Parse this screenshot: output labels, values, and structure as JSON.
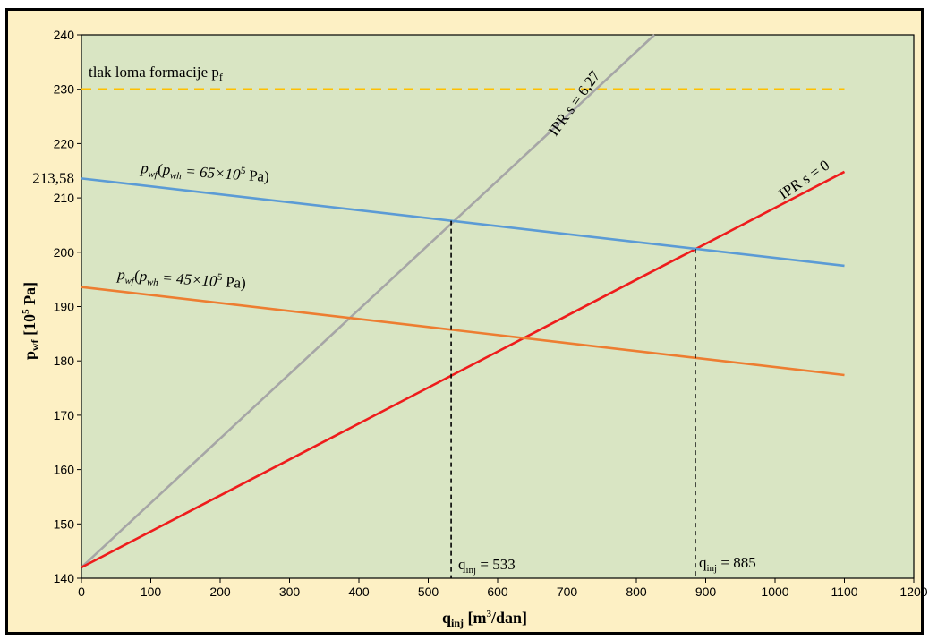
{
  "chart_data": {
    "type": "line",
    "xlabel": {
      "main": "q",
      "sub": "inj",
      "rest": " [m",
      "sup": "3",
      "tail": "/dan]"
    },
    "ylabel": {
      "main": "p",
      "sub": "wf",
      "rest": " [10",
      "sup": "5",
      "tail": " Pa]"
    },
    "xlim": [
      0,
      1200
    ],
    "ylim": [
      140,
      240
    ],
    "xticks": [
      0,
      100,
      200,
      300,
      400,
      500,
      600,
      700,
      800,
      900,
      1000,
      1100,
      1200
    ],
    "yticks": [
      140,
      150,
      160,
      170,
      180,
      190,
      200,
      210,
      220,
      230,
      240
    ],
    "ytick_extra": {
      "value": 213.58,
      "label": "213,58"
    },
    "colors": {
      "plot_bg": "#d9e5c3",
      "frame_bg": "#fdf0c4",
      "grey": "#a6a6a6",
      "red": "#ee1c1c",
      "blue": "#5b9bd5",
      "orange": "#ed7d31",
      "yellow": "#ffc000"
    },
    "series": [
      {
        "name": "IPR s = 6,27",
        "color": "#a6a6a6",
        "x": [
          0,
          826
        ],
        "y": [
          142,
          240
        ]
      },
      {
        "name": "IPR s = 0",
        "color": "#ee1c1c",
        "x": [
          0,
          1100
        ],
        "y": [
          142,
          214.8
        ]
      },
      {
        "name": "pwf (pwh = 65×10⁵ Pa)",
        "color": "#5b9bd5",
        "x": [
          0,
          1100
        ],
        "y": [
          213.58,
          197.5
        ]
      },
      {
        "name": "pwf (pwh = 45×10⁵ Pa)",
        "color": "#ed7d31",
        "x": [
          0,
          1100
        ],
        "y": [
          193.6,
          177.4
        ]
      }
    ],
    "reference_line": {
      "y": 230,
      "x": [
        0,
        1100
      ],
      "color": "#ffc000",
      "style": "dashed"
    },
    "vertical_markers": [
      {
        "x": 533,
        "y_top": 205.8
      },
      {
        "x": 885,
        "y_top": 200.6
      }
    ],
    "annotations": {
      "frac_label": {
        "main": "tlak loma formacije p",
        "sub": "f"
      },
      "ipr_627": "IPR s = 6,27",
      "ipr_0": "IPR s = 0",
      "blue_label": {
        "p": "p",
        "wf": "wf",
        "open": "(",
        "p2": "p",
        "wh": "wh",
        "eq": " = 65×10",
        "sup": "5",
        "tail": " Pa)"
      },
      "orange_label": {
        "p": "p",
        "wf": "wf",
        "open": "(",
        "p2": "p",
        "wh": "wh",
        "eq": " = 45×10",
        "sup": "5",
        "tail": " Pa)"
      },
      "q533": {
        "main": "q",
        "sub": "inj",
        "rest": " = 533"
      },
      "q885": {
        "main": "q",
        "sub": "inj",
        "rest": " = 885"
      }
    }
  }
}
